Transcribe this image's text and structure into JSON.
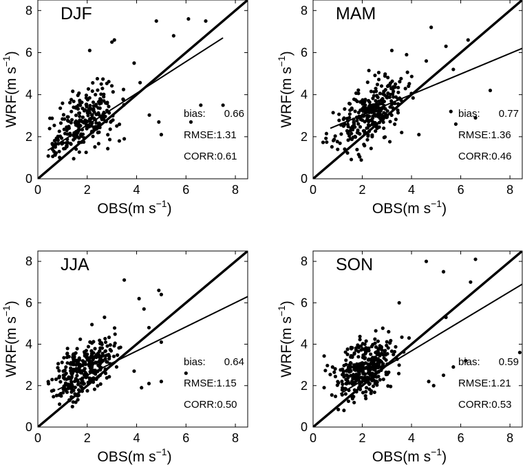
{
  "chart_data": [
    {
      "type": "scatter",
      "title": "DJF",
      "xlabel": "OBS(m s",
      "ylabel": "WRF(m s",
      "unit_exponent": "−1",
      "xlim": [
        0,
        8.5
      ],
      "ylim": [
        0,
        8.5
      ],
      "xticks": [
        "0",
        "2",
        "4",
        "6",
        "8"
      ],
      "yticks": [
        "0",
        "2",
        "4",
        "6",
        "8"
      ],
      "stats": {
        "bias_label": "bias:",
        "bias_value": "0.66",
        "rmse": "RMSE:1.31",
        "corr": "CORR:0.61"
      },
      "fit": {
        "x": [
          0.4,
          7.5
        ],
        "y": [
          1.35,
          6.7
        ]
      },
      "outliers": [
        [
          4.8,
          7.5
        ],
        [
          6.1,
          7.6
        ],
        [
          6.8,
          7.5
        ],
        [
          5.5,
          6.8
        ],
        [
          3.1,
          6.6
        ],
        [
          3.0,
          6.5
        ],
        [
          2.1,
          6.1
        ],
        [
          3.9,
          5.5
        ],
        [
          6.6,
          3.5
        ],
        [
          7.5,
          3.5
        ],
        [
          6.2,
          2.7
        ],
        [
          5.0,
          2.1
        ],
        [
          4.9,
          2.7
        ],
        [
          3.5,
          1.9
        ],
        [
          3.3,
          1.8
        ]
      ],
      "cluster": {
        "cx": 1.85,
        "cy": 2.75,
        "sx": 0.75,
        "sy": 0.8,
        "n": 260,
        "seed": 11
      }
    },
    {
      "type": "scatter",
      "title": "MAM",
      "xlabel": "OBS(m s",
      "ylabel": "WRF(m s",
      "unit_exponent": "−1",
      "xlim": [
        0,
        8.5
      ],
      "ylim": [
        0,
        8.5
      ],
      "xticks": [
        "0",
        "2",
        "4",
        "6",
        "8"
      ],
      "yticks": [
        "0",
        "2",
        "4",
        "6",
        "8"
      ],
      "stats": {
        "bias_label": "bias:",
        "bias_value": "0.77",
        "rmse": "RMSE:1.36",
        "corr": "CORR:0.46"
      },
      "fit": {
        "x": [
          0.7,
          8.5
        ],
        "y": [
          2.4,
          6.2
        ]
      },
      "outliers": [
        [
          4.8,
          7.2
        ],
        [
          6.3,
          6.6
        ],
        [
          5.4,
          6.3
        ],
        [
          3.2,
          6.1
        ],
        [
          3.8,
          5.9
        ],
        [
          4.6,
          5.6
        ],
        [
          5.7,
          5.2
        ],
        [
          7.2,
          4.2
        ],
        [
          6.6,
          2.9
        ],
        [
          5.8,
          2.6
        ],
        [
          5.6,
          3.2
        ],
        [
          4.3,
          2.1
        ],
        [
          3.6,
          2.2
        ],
        [
          1.0,
          1.4
        ]
      ],
      "cluster": {
        "cx": 2.3,
        "cy": 3.1,
        "sx": 0.7,
        "sy": 0.8,
        "n": 300,
        "seed": 23
      }
    },
    {
      "type": "scatter",
      "title": "JJA",
      "xlabel": "OBS(m s",
      "ylabel": "WRF(m s",
      "unit_exponent": "−1",
      "xlim": [
        0,
        8.5
      ],
      "ylim": [
        0,
        8.5
      ],
      "xticks": [
        "0",
        "2",
        "4",
        "6",
        "8"
      ],
      "yticks": [
        "0",
        "2",
        "4",
        "6",
        "8"
      ],
      "stats": {
        "bias_label": "bias:",
        "bias_value": "0.64",
        "rmse": "RMSE:1.15",
        "corr": "CORR:0.50"
      },
      "fit": {
        "x": [
          0.8,
          8.5
        ],
        "y": [
          1.8,
          6.3
        ]
      },
      "outliers": [
        [
          3.5,
          7.1
        ],
        [
          4.9,
          6.6
        ],
        [
          5.0,
          6.4
        ],
        [
          4.1,
          6.2
        ],
        [
          4.3,
          5.7
        ],
        [
          2.7,
          5.3
        ],
        [
          4.5,
          4.8
        ],
        [
          5.0,
          4.1
        ],
        [
          6.0,
          2.6
        ],
        [
          4.5,
          2.1
        ],
        [
          4.2,
          1.9
        ],
        [
          5.0,
          2.2
        ],
        [
          3.9,
          2.7
        ]
      ],
      "cluster": {
        "cx": 1.85,
        "cy": 2.8,
        "sx": 0.6,
        "sy": 0.75,
        "n": 300,
        "seed": 37
      }
    },
    {
      "type": "scatter",
      "title": "SON",
      "xlabel": "OBS(m s",
      "ylabel": "WRF(m s",
      "unit_exponent": "−1",
      "xlim": [
        0,
        8.5
      ],
      "ylim": [
        0,
        8.5
      ],
      "xticks": [
        "0",
        "2",
        "4",
        "6",
        "8"
      ],
      "yticks": [
        "0",
        "2",
        "4",
        "6",
        "8"
      ],
      "stats": {
        "bias_label": "bias:",
        "bias_value": "0.59",
        "rmse": "RMSE:1.21",
        "corr": "CORR:0.53"
      },
      "fit": {
        "x": [
          1.1,
          8.5
        ],
        "y": [
          1.6,
          6.9
        ]
      },
      "outliers": [
        [
          4.6,
          8.0
        ],
        [
          6.6,
          8.1
        ],
        [
          5.3,
          7.5
        ],
        [
          6.4,
          7.0
        ],
        [
          5.4,
          5.3
        ],
        [
          8.4,
          3.6
        ],
        [
          6.2,
          3.2
        ],
        [
          5.7,
          2.9
        ],
        [
          4.9,
          2.0
        ],
        [
          5.3,
          2.5
        ],
        [
          4.7,
          2.2
        ],
        [
          3.5,
          6.0
        ],
        [
          3.9,
          4.3
        ]
      ],
      "cluster": {
        "cx": 2.1,
        "cy": 2.9,
        "sx": 0.65,
        "sy": 0.8,
        "n": 320,
        "seed": 53
      }
    }
  ]
}
